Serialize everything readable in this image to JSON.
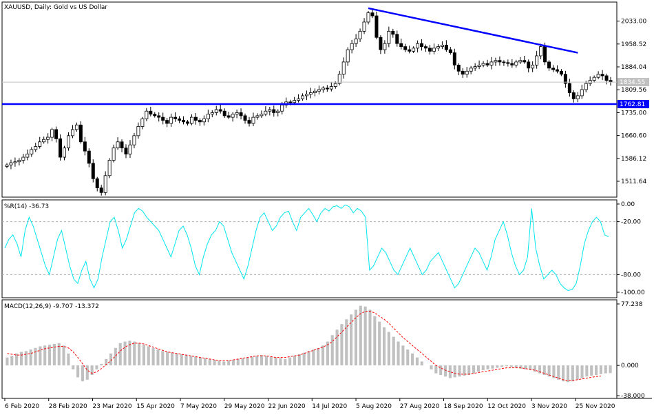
{
  "window_title": "XAUUSD, Daily:  Gold vs US Dollar",
  "colors": {
    "candle": "#000000",
    "trendline": "#0000ff",
    "wpr_line": "#00e5ee",
    "macd_hist": "#c0c0c0",
    "macd_signal": "#ff0000",
    "price_label_bg": "#c0c0c0",
    "support_label_bg": "#0000ff"
  },
  "chart_data": [
    {
      "type": "candlestick",
      "title": "XAUUSD, Daily:  Gold vs US Dollar",
      "price_ticks": [
        "2033.00",
        "1958.52",
        "1884.04",
        "1809.56",
        "1735.00",
        "1660.60",
        "1586.12",
        "1511.64"
      ],
      "ylim": [
        1460,
        2095
      ],
      "current_price_label": "1834.55",
      "current_price": 1834.55,
      "support_label": "1762.81",
      "support_level": 1762.81,
      "resistance_trendline": {
        "from": {
          "x": "2020-08-06",
          "y": 2075
        },
        "to": {
          "x": "2020-12-03",
          "y": 1930
        }
      },
      "x_ticks": [
        "6 Feb 2020",
        "28 Feb 2020",
        "23 Mar 2020",
        "15 Apr 2020",
        "7 May 2020",
        "29 May 2020",
        "22 Jun 2020",
        "14 Jul 2020",
        "5 Aug 2020",
        "27 Aug 2020",
        "18 Sep 2020",
        "12 Oct 2020",
        "3 Nov 2020",
        "25 Nov 2020"
      ],
      "closes": [
        1565,
        1572,
        1575,
        1580,
        1590,
        1600,
        1615,
        1625,
        1640,
        1648,
        1655,
        1680,
        1650,
        1590,
        1620,
        1660,
        1680,
        1695,
        1640,
        1610,
        1570,
        1520,
        1490,
        1475,
        1530,
        1580,
        1620,
        1640,
        1620,
        1600,
        1630,
        1660,
        1690,
        1715,
        1740,
        1730,
        1725,
        1720,
        1710,
        1700,
        1720,
        1715,
        1710,
        1705,
        1700,
        1720,
        1710,
        1705,
        1715,
        1730,
        1735,
        1745,
        1740,
        1725,
        1720,
        1730,
        1735,
        1725,
        1710,
        1700,
        1720,
        1725,
        1730,
        1740,
        1745,
        1735,
        1740,
        1760,
        1770,
        1768,
        1775,
        1780,
        1790,
        1795,
        1800,
        1805,
        1810,
        1815,
        1812,
        1820,
        1830,
        1860,
        1900,
        1940,
        1960,
        1975,
        2000,
        2030,
        2060,
        2050,
        1980,
        1940,
        1960,
        2000,
        1990,
        1960,
        1950,
        1940,
        1935,
        1945,
        1960,
        1950,
        1945,
        1935,
        1945,
        1950,
        1955,
        1940,
        1930,
        1890,
        1870,
        1860,
        1870,
        1880,
        1885,
        1890,
        1895,
        1890,
        1900,
        1905,
        1900,
        1898,
        1895,
        1890,
        1900,
        1905,
        1900,
        1880,
        1890,
        1920,
        1950,
        1900,
        1880,
        1875,
        1870,
        1860,
        1830,
        1800,
        1780,
        1790,
        1810,
        1830,
        1840,
        1850,
        1860,
        1855,
        1840,
        1835
      ],
      "series": [
        {
          "name": "XAUUSD"
        }
      ]
    },
    {
      "type": "line",
      "title": "%R(14) -36.73",
      "ylim": [
        -100,
        0
      ],
      "y_ticks": [
        "0.00",
        "-20.00",
        "-80.00",
        "-100.00"
      ],
      "levels": [
        -20,
        -80
      ],
      "values": [
        -50,
        -40,
        -35,
        -45,
        -60,
        -30,
        -15,
        -25,
        -40,
        -55,
        -70,
        -80,
        -60,
        -40,
        -30,
        -50,
        -70,
        -85,
        -90,
        -75,
        -65,
        -85,
        -95,
        -85,
        -60,
        -40,
        -20,
        -15,
        -30,
        -50,
        -40,
        -25,
        -10,
        -5,
        -8,
        -15,
        -20,
        -25,
        -30,
        -40,
        -50,
        -60,
        -45,
        -30,
        -25,
        -35,
        -50,
        -70,
        -80,
        -60,
        -45,
        -35,
        -30,
        -20,
        -25,
        -40,
        -55,
        -65,
        -75,
        -85,
        -70,
        -50,
        -30,
        -15,
        -10,
        -20,
        -30,
        -25,
        -15,
        -10,
        -8,
        -20,
        -30,
        -15,
        -10,
        -5,
        -12,
        -20,
        -10,
        -5,
        -8,
        -3,
        -2,
        -5,
        -1,
        -3,
        -10,
        -5,
        -8,
        -15,
        -75,
        -70,
        -60,
        -50,
        -55,
        -65,
        -75,
        -80,
        -70,
        -60,
        -50,
        -60,
        -70,
        -80,
        -75,
        -65,
        -60,
        -55,
        -65,
        -75,
        -85,
        -95,
        -90,
        -80,
        -70,
        -60,
        -50,
        -55,
        -65,
        -75,
        -60,
        -40,
        -30,
        -20,
        -35,
        -55,
        -70,
        -80,
        -75,
        -60,
        -5,
        -50,
        -70,
        -85,
        -80,
        -75,
        -80,
        -90,
        -95,
        -98,
        -97,
        -90,
        -70,
        -45,
        -30,
        -20,
        -15,
        -20,
        -35,
        -37
      ],
      "current_value_label": "-36.73"
    },
    {
      "type": "bar",
      "title": "MACD(12,26,9) -9.707 -13.372",
      "ylim": [
        -38,
        77.238
      ],
      "y_ticks": [
        "77.238",
        "0.000",
        "-38.000"
      ],
      "histogram": [
        10,
        12,
        15,
        17,
        18,
        20,
        22,
        24,
        25,
        26,
        27,
        28,
        25,
        15,
        -5,
        -15,
        -20,
        -18,
        -12,
        -5,
        2,
        8,
        15,
        22,
        28,
        30,
        31,
        30,
        28,
        26,
        24,
        22,
        20,
        18,
        17,
        16,
        15,
        14,
        13,
        12,
        11,
        10,
        9,
        8,
        7,
        6,
        5,
        6,
        7,
        8,
        9,
        10,
        11,
        12,
        13,
        12,
        11,
        10,
        9,
        8,
        10,
        12,
        14,
        16,
        18,
        20,
        22,
        25,
        30,
        38,
        45,
        52,
        58,
        64,
        70,
        75,
        74,
        70,
        62,
        55,
        48,
        42,
        36,
        30,
        25,
        20,
        15,
        10,
        5,
        0,
        -5,
        -10,
        -12,
        -14,
        -16,
        -15,
        -14,
        -13,
        -12,
        -10,
        -8,
        -6,
        -5,
        -4,
        -3,
        -2,
        -1,
        -2,
        -3,
        -4,
        -5,
        -6,
        -8,
        -10,
        -12,
        -14,
        -16,
        -18,
        -20,
        -21,
        -20,
        -18,
        -16,
        -14,
        -13,
        -12,
        -11,
        -10,
        -9.7
      ],
      "signal": [
        15,
        14,
        13,
        13,
        14,
        15,
        17,
        19,
        21,
        22,
        23,
        24,
        24,
        22,
        17,
        10,
        2,
        -6,
        -10,
        -8,
        -4,
        1,
        6,
        12,
        18,
        23,
        26,
        28,
        28,
        27,
        25,
        23,
        21,
        19,
        17,
        16,
        15,
        14,
        13,
        12,
        11,
        10,
        9,
        8,
        7,
        6,
        6,
        6,
        7,
        8,
        9,
        10,
        11,
        12,
        12,
        12,
        11,
        10,
        10,
        10,
        11,
        12,
        13,
        15,
        17,
        19,
        21,
        23,
        26,
        30,
        36,
        42,
        48,
        54,
        60,
        65,
        68,
        68,
        66,
        62,
        58,
        53,
        47,
        41,
        35,
        30,
        25,
        20,
        15,
        10,
        5,
        0,
        -3,
        -6,
        -8,
        -10,
        -11,
        -11,
        -11,
        -10,
        -9,
        -8,
        -7,
        -6,
        -5,
        -4,
        -3,
        -3,
        -3,
        -3,
        -4,
        -5,
        -6,
        -8,
        -10,
        -12,
        -14,
        -16,
        -18,
        -19,
        -19,
        -18,
        -17,
        -16,
        -15,
        -14,
        -13.4
      ],
      "series": [
        {
          "name": "MACD(12,26,9)"
        }
      ]
    }
  ]
}
